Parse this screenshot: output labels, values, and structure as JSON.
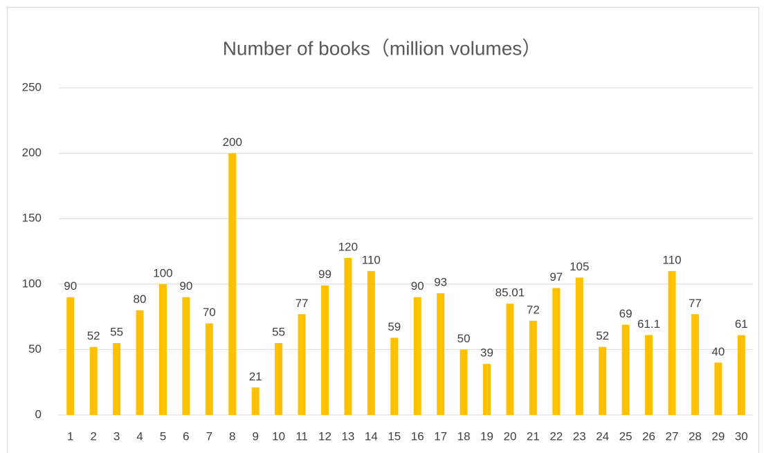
{
  "chart_data": {
    "type": "bar",
    "title": "Number of books（million volumes）",
    "categories": [
      "1",
      "2",
      "3",
      "4",
      "5",
      "6",
      "7",
      "8",
      "9",
      "10",
      "11",
      "12",
      "13",
      "14",
      "15",
      "16",
      "17",
      "18",
      "19",
      "20",
      "21",
      "22",
      "23",
      "24",
      "25",
      "26",
      "27",
      "28",
      "29",
      "30"
    ],
    "values": [
      90,
      52,
      55,
      80,
      100,
      90,
      70,
      200,
      21,
      55,
      77,
      99,
      120,
      110,
      59,
      90,
      93,
      50,
      39,
      85.01,
      72,
      97,
      105,
      52,
      69,
      61.1,
      110,
      77,
      40,
      61
    ],
    "color": "#ffc000",
    "ylim": [
      0,
      250
    ],
    "yticks": [
      0,
      50,
      100,
      150,
      200,
      250
    ],
    "grid": true
  }
}
